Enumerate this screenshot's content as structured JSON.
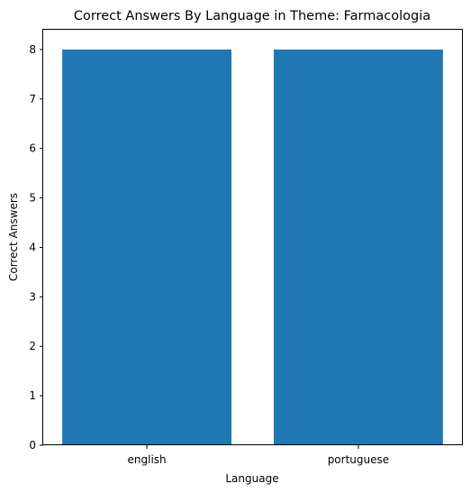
{
  "chart_data": {
    "type": "bar",
    "title": "Correct Answers By Language in Theme: Farmacologia",
    "xlabel": "Language",
    "ylabel": "Correct Answers",
    "categories": [
      "english",
      "portuguese"
    ],
    "values": [
      8,
      8
    ],
    "ylim": [
      0,
      8.4
    ],
    "yticks": [
      0,
      1,
      2,
      3,
      4,
      5,
      6,
      7,
      8
    ],
    "grid": false,
    "bar_color": "#1f77b4"
  }
}
